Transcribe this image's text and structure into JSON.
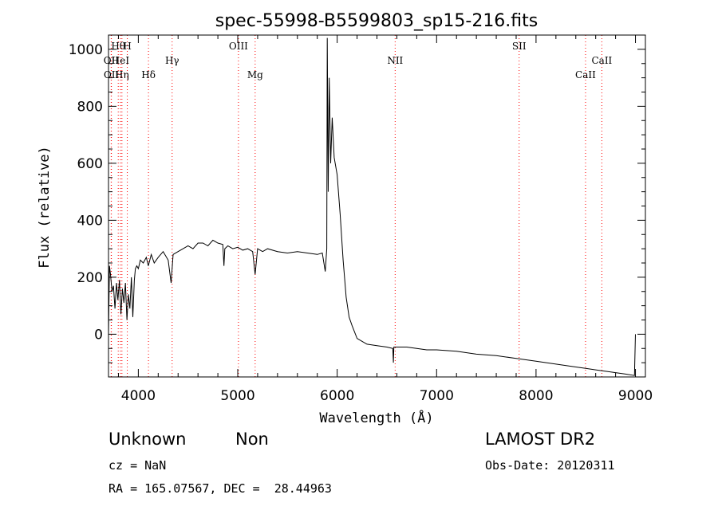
{
  "chart_data": {
    "type": "line",
    "title": "spec-55998-B5599803_sp15-216.fits",
    "xlabel": "Wavelength (Å)",
    "ylabel": "Flux (relative)",
    "xlim": [
      3700,
      9100
    ],
    "ylim": [
      -150,
      1050
    ],
    "xticks": [
      4000,
      5000,
      6000,
      7000,
      8000,
      9000
    ],
    "yticks": [
      0,
      200,
      400,
      600,
      800,
      1000
    ],
    "grid": false,
    "line_color": "#000000",
    "marker_color": "#ff0000",
    "series": [
      {
        "x": [
          3700,
          3710,
          3720,
          3735,
          3750,
          3765,
          3780,
          3795,
          3810,
          3825,
          3840,
          3855,
          3870,
          3885,
          3900,
          3915,
          3930,
          3945,
          3960,
          3970,
          3985,
          4000,
          4020,
          4050,
          4080,
          4100,
          4130,
          4160,
          4200,
          4250,
          4300,
          4330,
          4350,
          4400,
          4450,
          4500,
          4550,
          4600,
          4650,
          4700,
          4750,
          4800,
          4850,
          4861,
          4870,
          4900,
          4950,
          5000,
          5050,
          5100,
          5150,
          5175,
          5200,
          5250,
          5300,
          5400,
          5500,
          5600,
          5700,
          5800,
          5850,
          5880,
          5895,
          5900,
          5910,
          5920,
          5935,
          5950,
          5970,
          6000,
          6030,
          6060,
          6090,
          6120,
          6150,
          6200,
          6250,
          6300,
          6400,
          6500,
          6560,
          6565,
          6570,
          6700,
          6800,
          6900,
          7000,
          7200,
          7400,
          7600,
          7800,
          8000,
          8200,
          8400,
          8500,
          8600,
          8700,
          8800,
          8900,
          8990,
          9000
        ],
        "y": [
          0,
          240,
          210,
          150,
          170,
          90,
          180,
          120,
          190,
          70,
          160,
          110,
          180,
          50,
          140,
          90,
          200,
          60,
          190,
          230,
          240,
          230,
          260,
          250,
          270,
          240,
          280,
          250,
          270,
          290,
          260,
          180,
          280,
          290,
          300,
          310,
          300,
          320,
          320,
          310,
          330,
          320,
          315,
          240,
          300,
          310,
          300,
          305,
          295,
          300,
          290,
          210,
          300,
          290,
          300,
          290,
          285,
          290,
          285,
          280,
          285,
          220,
          300,
          1040,
          500,
          900,
          600,
          760,
          620,
          560,
          420,
          260,
          130,
          60,
          30,
          -15,
          -25,
          -35,
          -40,
          -45,
          -50,
          -100,
          -45,
          -45,
          -50,
          -55,
          -55,
          -60,
          -70,
          -75,
          -85,
          -95,
          -105,
          -115,
          -120,
          -125,
          -130,
          -135,
          -140,
          -145,
          0
        ]
      }
    ],
    "lines": [
      {
        "label": "Hθ",
        "x": 3798,
        "row": 0
      },
      {
        "label": "H",
        "x": 3889,
        "row": 0
      },
      {
        "label": "OII",
        "x": 3727,
        "row": 1
      },
      {
        "label": "HeI",
        "x": 3820,
        "row": 1
      },
      {
        "label": "Hγ",
        "x": 4340,
        "row": 1
      },
      {
        "label": "OII",
        "x": 3729,
        "row": 2
      },
      {
        "label": "Hη",
        "x": 3835,
        "row": 2
      },
      {
        "label": "Hδ",
        "x": 4102,
        "row": 2
      },
      {
        "label": "OIII",
        "x": 5007,
        "row": 0
      },
      {
        "label": "Mg",
        "x": 5175,
        "row": 2
      },
      {
        "label": "NII",
        "x": 6583,
        "row": 1
      },
      {
        "label": "SII",
        "x": 7830,
        "row": 0
      },
      {
        "label": "CaII",
        "x": 8662,
        "row": 1
      },
      {
        "label": "CaII",
        "x": 8498,
        "row": 2
      }
    ]
  },
  "info": {
    "class": "Unknown",
    "subclass": "Non",
    "survey": "LAMOST DR2",
    "cz": "cz = NaN",
    "obs_date": "Obs-Date: 20120311",
    "coords": "RA = 165.07567, DEC =  28.44963"
  }
}
